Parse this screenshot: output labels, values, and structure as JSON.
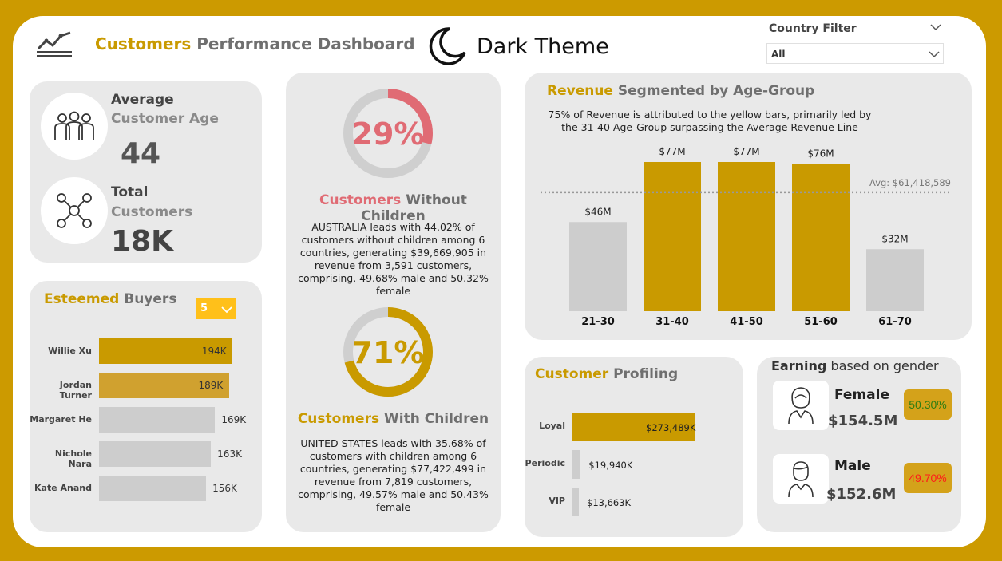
{
  "header": {
    "title_highlight": "Customers",
    "title_rest": "Performance Dashboard",
    "theme_label": "Dark Theme",
    "country_filter_label": "Country Filter",
    "country_filter_value": "All"
  },
  "kpis": {
    "avg_age_title": "Average",
    "avg_age_subtitle": "Customer Age",
    "avg_age_value": "44",
    "total_title": "Total",
    "total_subtitle": "Customers",
    "total_value": "18K"
  },
  "esteemed": {
    "title_highlight": "Esteemed",
    "title_rest": "Buyers",
    "topn_value": "5",
    "buyers": [
      {
        "name": "Willie Xu",
        "value": 194,
        "label": "194K",
        "color": "#c99a00",
        "label_inside": true
      },
      {
        "name": "Jordan Turner",
        "value": 189,
        "label": "189K",
        "color": "#d0a12f",
        "label_inside": true
      },
      {
        "name": "Margaret He",
        "value": 169,
        "label": "169K",
        "color": "#cdcdcd",
        "label_inside": false
      },
      {
        "name": "Nichole Nara",
        "value": 163,
        "label": "163K",
        "color": "#cdcdcd",
        "label_inside": false
      },
      {
        "name": "Kate Anand",
        "value": 156,
        "label": "156K",
        "color": "#cdcdcd",
        "label_inside": false
      }
    ]
  },
  "without_children": {
    "percent": 29,
    "percent_label": "29%",
    "title_highlight": "Customers",
    "title_rest": "Without Children",
    "description": "AUSTRALIA leads with 44.02% of customers without children among 6 countries, generating $39,669,905 in revenue from 3,591 customers, comprising, 49.68% male and 50.32% female",
    "ring_color": "#e06b74"
  },
  "with_children": {
    "percent": 71,
    "percent_label": "71%",
    "title_highlight": "Customers",
    "title_rest": "With Children",
    "description": "UNITED STATES leads with 35.68% of customers with children among 6 countries, generating $77,422,499 in revenue from 7,819 customers, comprising, 49.57% male and 50.43% female",
    "ring_color": "#c99a00"
  },
  "revenue": {
    "title_highlight": "Revenue",
    "title_rest": "Segmented by Age-Group",
    "subtitle": "75% of Revenue is attributed to the yellow bars, primarily led by the 31-40 Age-Group surpassing the Average Revenue Line",
    "avg_label": "Avg: $61,418,589"
  },
  "chart_data": {
    "type": "bar",
    "categories": [
      "21-30",
      "31-40",
      "41-50",
      "51-60",
      "61-70"
    ],
    "values": [
      46,
      77,
      77,
      76,
      32
    ],
    "data_labels": [
      "$46M",
      "$77M",
      "$77M",
      "$76M",
      "$32M"
    ],
    "colors": [
      "#cdcdcd",
      "#c99a00",
      "#c99a00",
      "#c99a00",
      "#cdcdcd"
    ],
    "reference_line": 61.418589,
    "ylim": [
      0,
      80
    ]
  },
  "profiling": {
    "title_highlight": "Customer",
    "title_rest": "Profiling",
    "segments": [
      {
        "name": "Loyal",
        "value": 273489,
        "label": "$273,489K",
        "color": "#c99a00"
      },
      {
        "name": "Periodic",
        "value": 19940,
        "label": "$19,940K",
        "color": "#cdcdcd"
      },
      {
        "name": "VIP",
        "value": 13663,
        "label": "$13,663K",
        "color": "#cdcdcd"
      }
    ]
  },
  "gender": {
    "title_bold": "Earning",
    "title_rest": "based on gender",
    "female_label": "Female",
    "female_value": "$154.5M",
    "female_pct": "50.30%",
    "female_pct_color": "#2e7d12",
    "male_label": "Male",
    "male_value": "$152.6M",
    "male_pct": "49.70%",
    "male_pct_color": "#ff1a1a"
  }
}
